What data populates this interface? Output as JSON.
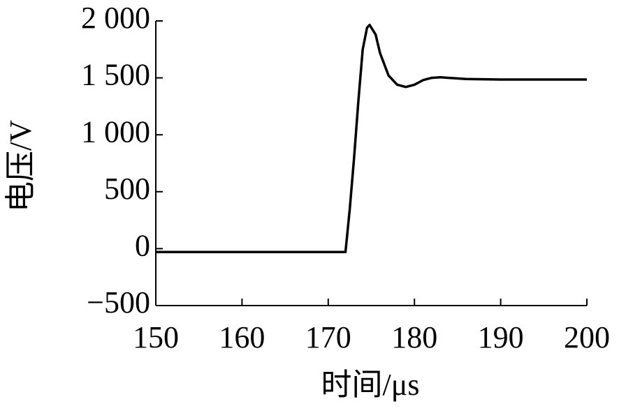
{
  "chart_data": {
    "type": "line",
    "x_label": "时间/μs",
    "y_label": "电压/V",
    "x": [
      150,
      172,
      172.5,
      173,
      173.5,
      174,
      174.5,
      174.8,
      175.5,
      176,
      177,
      178,
      179,
      180,
      181,
      182,
      183,
      184,
      186,
      190,
      200
    ],
    "values": [
      -30,
      -30,
      350,
      800,
      1300,
      1750,
      1940,
      1965,
      1880,
      1720,
      1520,
      1440,
      1420,
      1440,
      1480,
      1500,
      1505,
      1500,
      1490,
      1485,
      1485
    ],
    "color": "#000000",
    "xlim": [
      150,
      200
    ],
    "xticks": [
      150,
      160,
      170,
      180,
      190,
      200
    ],
    "ylim": [
      -500,
      2000
    ],
    "yticks": [
      {
        "value": -500,
        "label": "−500"
      },
      0,
      500,
      {
        "value": 1000,
        "label": "1 000"
      },
      {
        "value": 1500,
        "label": "1 500"
      },
      {
        "value": 2000,
        "label": "2 000"
      }
    ],
    "grid": false
  }
}
